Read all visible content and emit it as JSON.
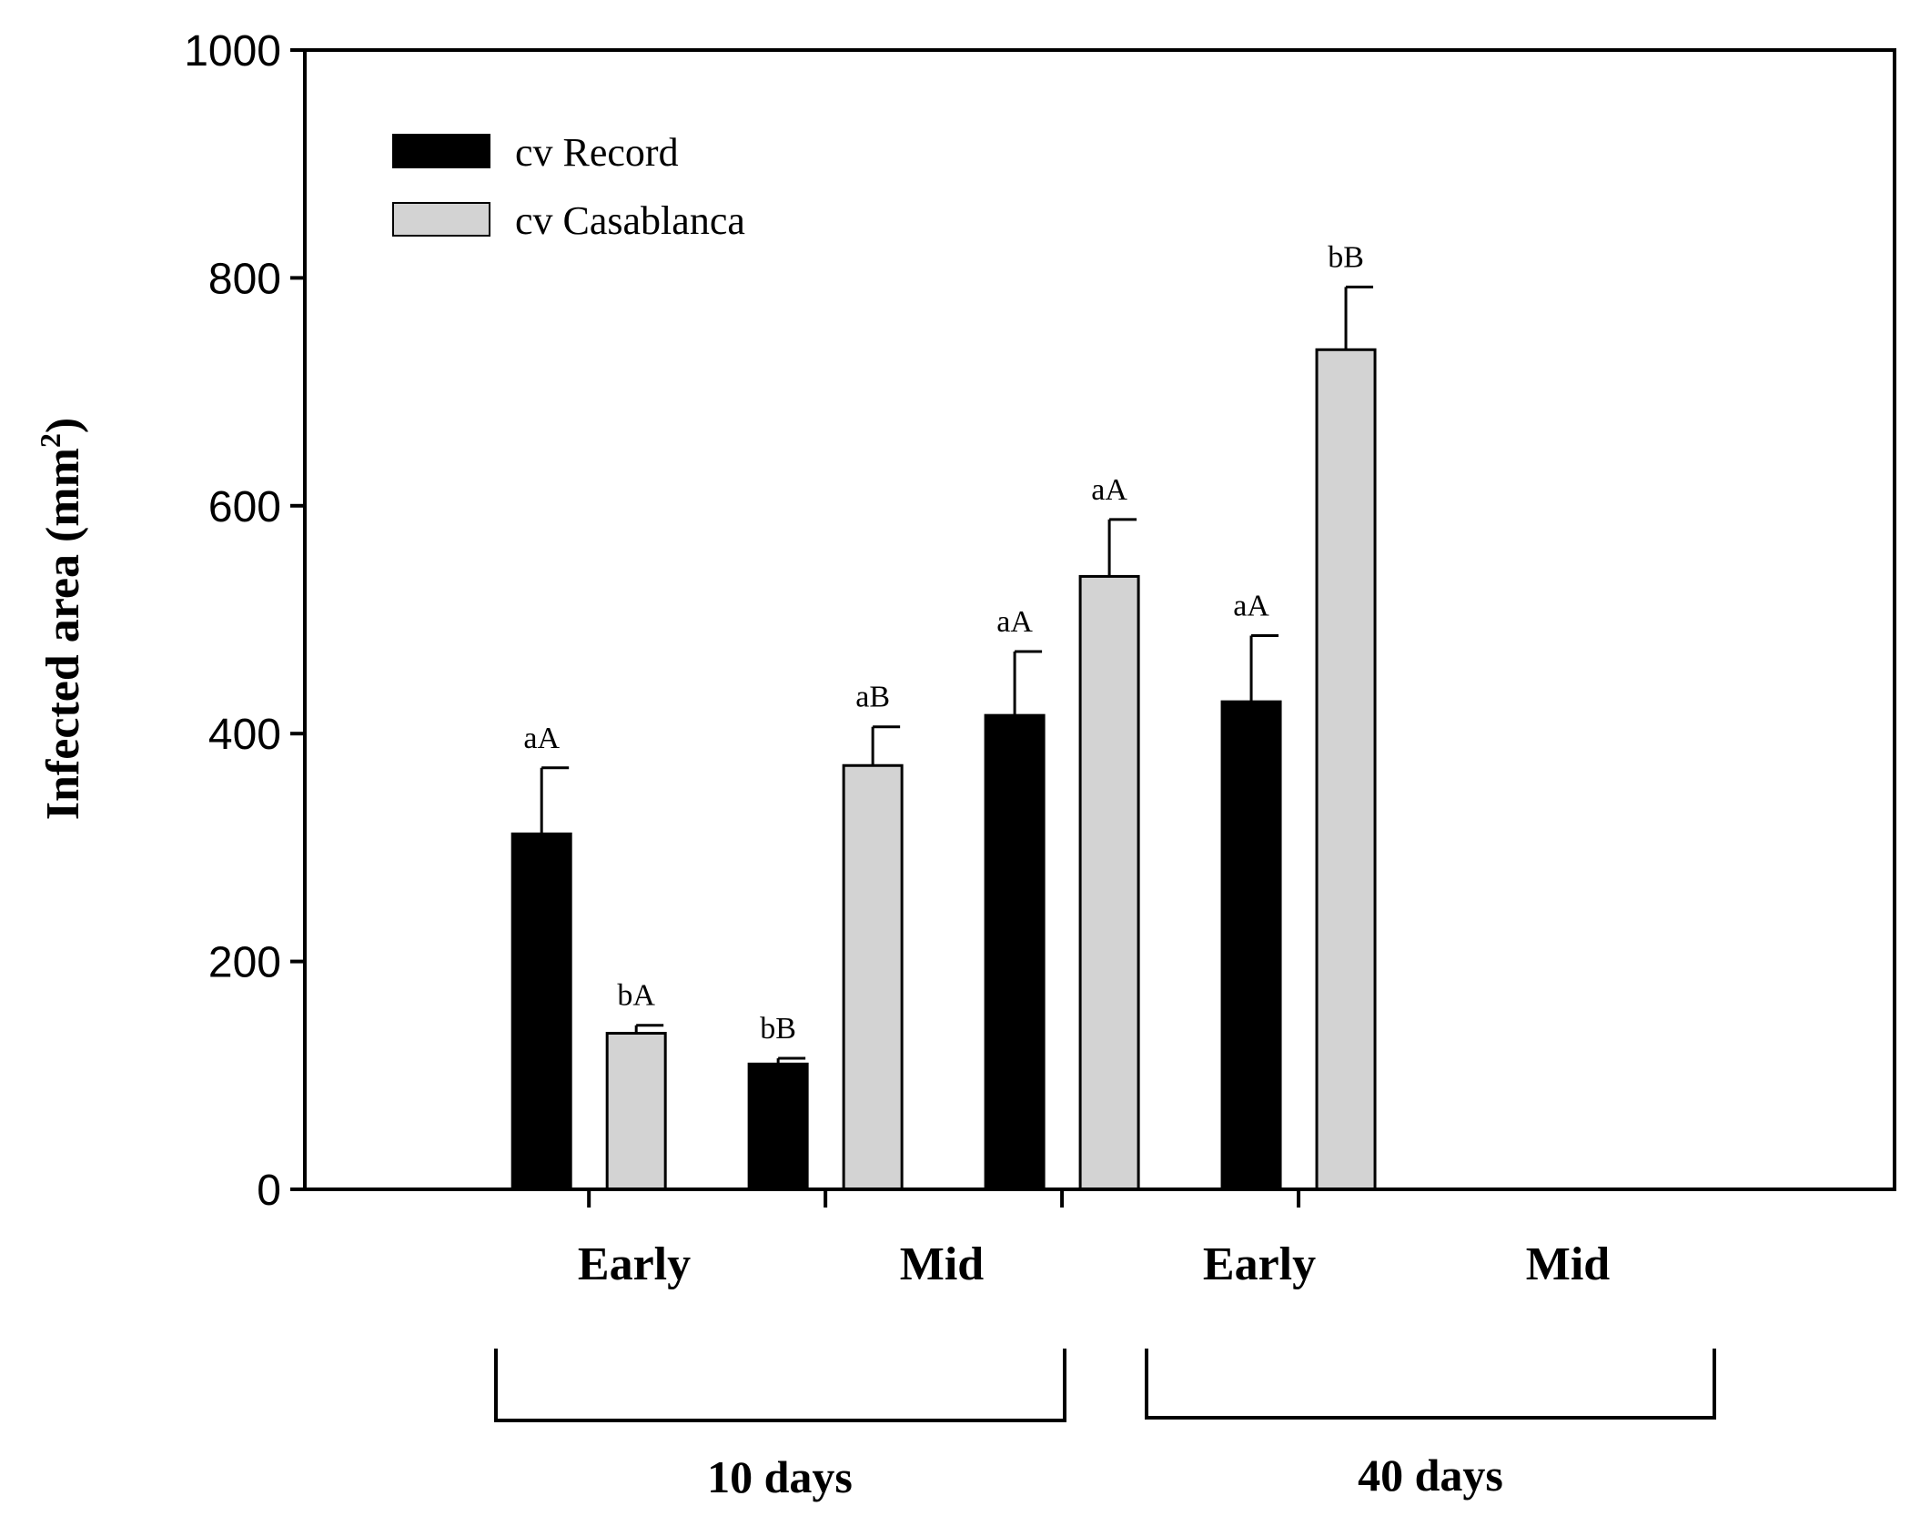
{
  "chart_data": {
    "type": "bar",
    "title": "",
    "xlabel": "",
    "ylabel": "Infected area (mm",
    "ylabel_superscript": "2",
    "ylabel_close": ")",
    "ylim": [
      0,
      1000
    ],
    "yticks": [
      0,
      200,
      400,
      600,
      800,
      1000
    ],
    "categories": [
      "Early",
      "Mid",
      "Early",
      "Mid"
    ],
    "groups": [
      {
        "label": "10 days",
        "categories": [
          0,
          1
        ]
      },
      {
        "label": "40 days",
        "categories": [
          2,
          3
        ]
      }
    ],
    "legend_position": "top-left",
    "series": [
      {
        "name": "cv Record",
        "color": "#000000",
        "values": [
          312,
          110,
          416,
          428
        ],
        "errors": [
          58,
          5,
          56,
          58
        ],
        "annotations": [
          "aA",
          "bB",
          "aA",
          "aA"
        ]
      },
      {
        "name": "cv Casablanca",
        "color": "#d3d3d3",
        "values": [
          137,
          372,
          538,
          737
        ],
        "errors": [
          7,
          34,
          50,
          55
        ],
        "annotations": [
          "bA",
          "aB",
          "aA",
          "bB"
        ]
      }
    ]
  }
}
